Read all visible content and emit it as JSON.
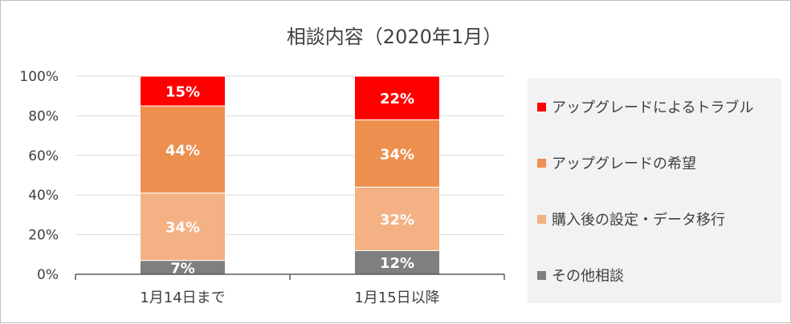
{
  "chart_data": {
    "type": "bar",
    "stacked": true,
    "normalized": true,
    "title": "相談内容（2020年1月）",
    "categories": [
      "1月14日まで",
      "1月15日以降"
    ],
    "ylim": [
      0,
      100
    ],
    "yticks": [
      "0%",
      "20%",
      "40%",
      "60%",
      "80%",
      "100%"
    ],
    "grid": true,
    "legend_position": "right",
    "series": [
      {
        "name": "その他相談",
        "color": "#7f7f7f",
        "values": [
          7,
          12
        ],
        "labels": [
          "7%",
          "12%"
        ]
      },
      {
        "name": "購入後の設定・データ移行",
        "color": "#f4b183",
        "values": [
          34,
          32
        ],
        "labels": [
          "34%",
          "32%"
        ]
      },
      {
        "name": "アップグレードの希望",
        "color": "#ed8f4f",
        "values": [
          44,
          34
        ],
        "labels": [
          "44%",
          "34%"
        ]
      },
      {
        "name": "アップグレードによるトラブル",
        "color": "#ff0000",
        "values": [
          15,
          22
        ],
        "labels": [
          "15%",
          "22%"
        ]
      }
    ],
    "legend_order": [
      3,
      2,
      1,
      0
    ]
  }
}
